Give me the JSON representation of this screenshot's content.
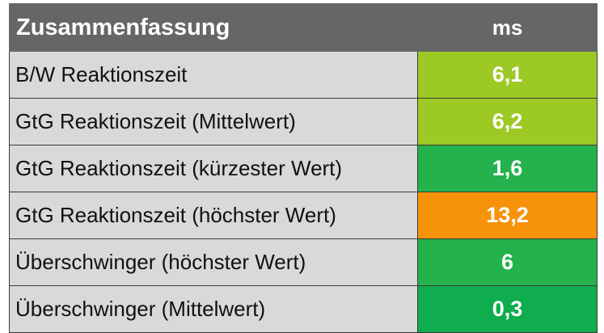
{
  "table": {
    "header": {
      "label": "Zusammenfassung",
      "unit": "ms"
    },
    "rows": [
      {
        "label": "B/W Reaktionszeit",
        "value": "6,1",
        "color": "#9dc925"
      },
      {
        "label": "GtG Reaktionszeit (Mittelwert)",
        "value": "6,2",
        "color": "#9dc925"
      },
      {
        "label": "GtG Reaktionszeit (kürzester Wert)",
        "value": "1,6",
        "color": "#23b24b"
      },
      {
        "label": "GtG Reaktionszeit (höchster Wert)",
        "value": "13,2",
        "color": "#f7930a"
      },
      {
        "label": "Überschwinger (höchster Wert)",
        "value": "6",
        "color": "#23b24b"
      },
      {
        "label": "Überschwinger (Mittelwert)",
        "value": "0,3",
        "color": "#0fad4d"
      }
    ]
  }
}
